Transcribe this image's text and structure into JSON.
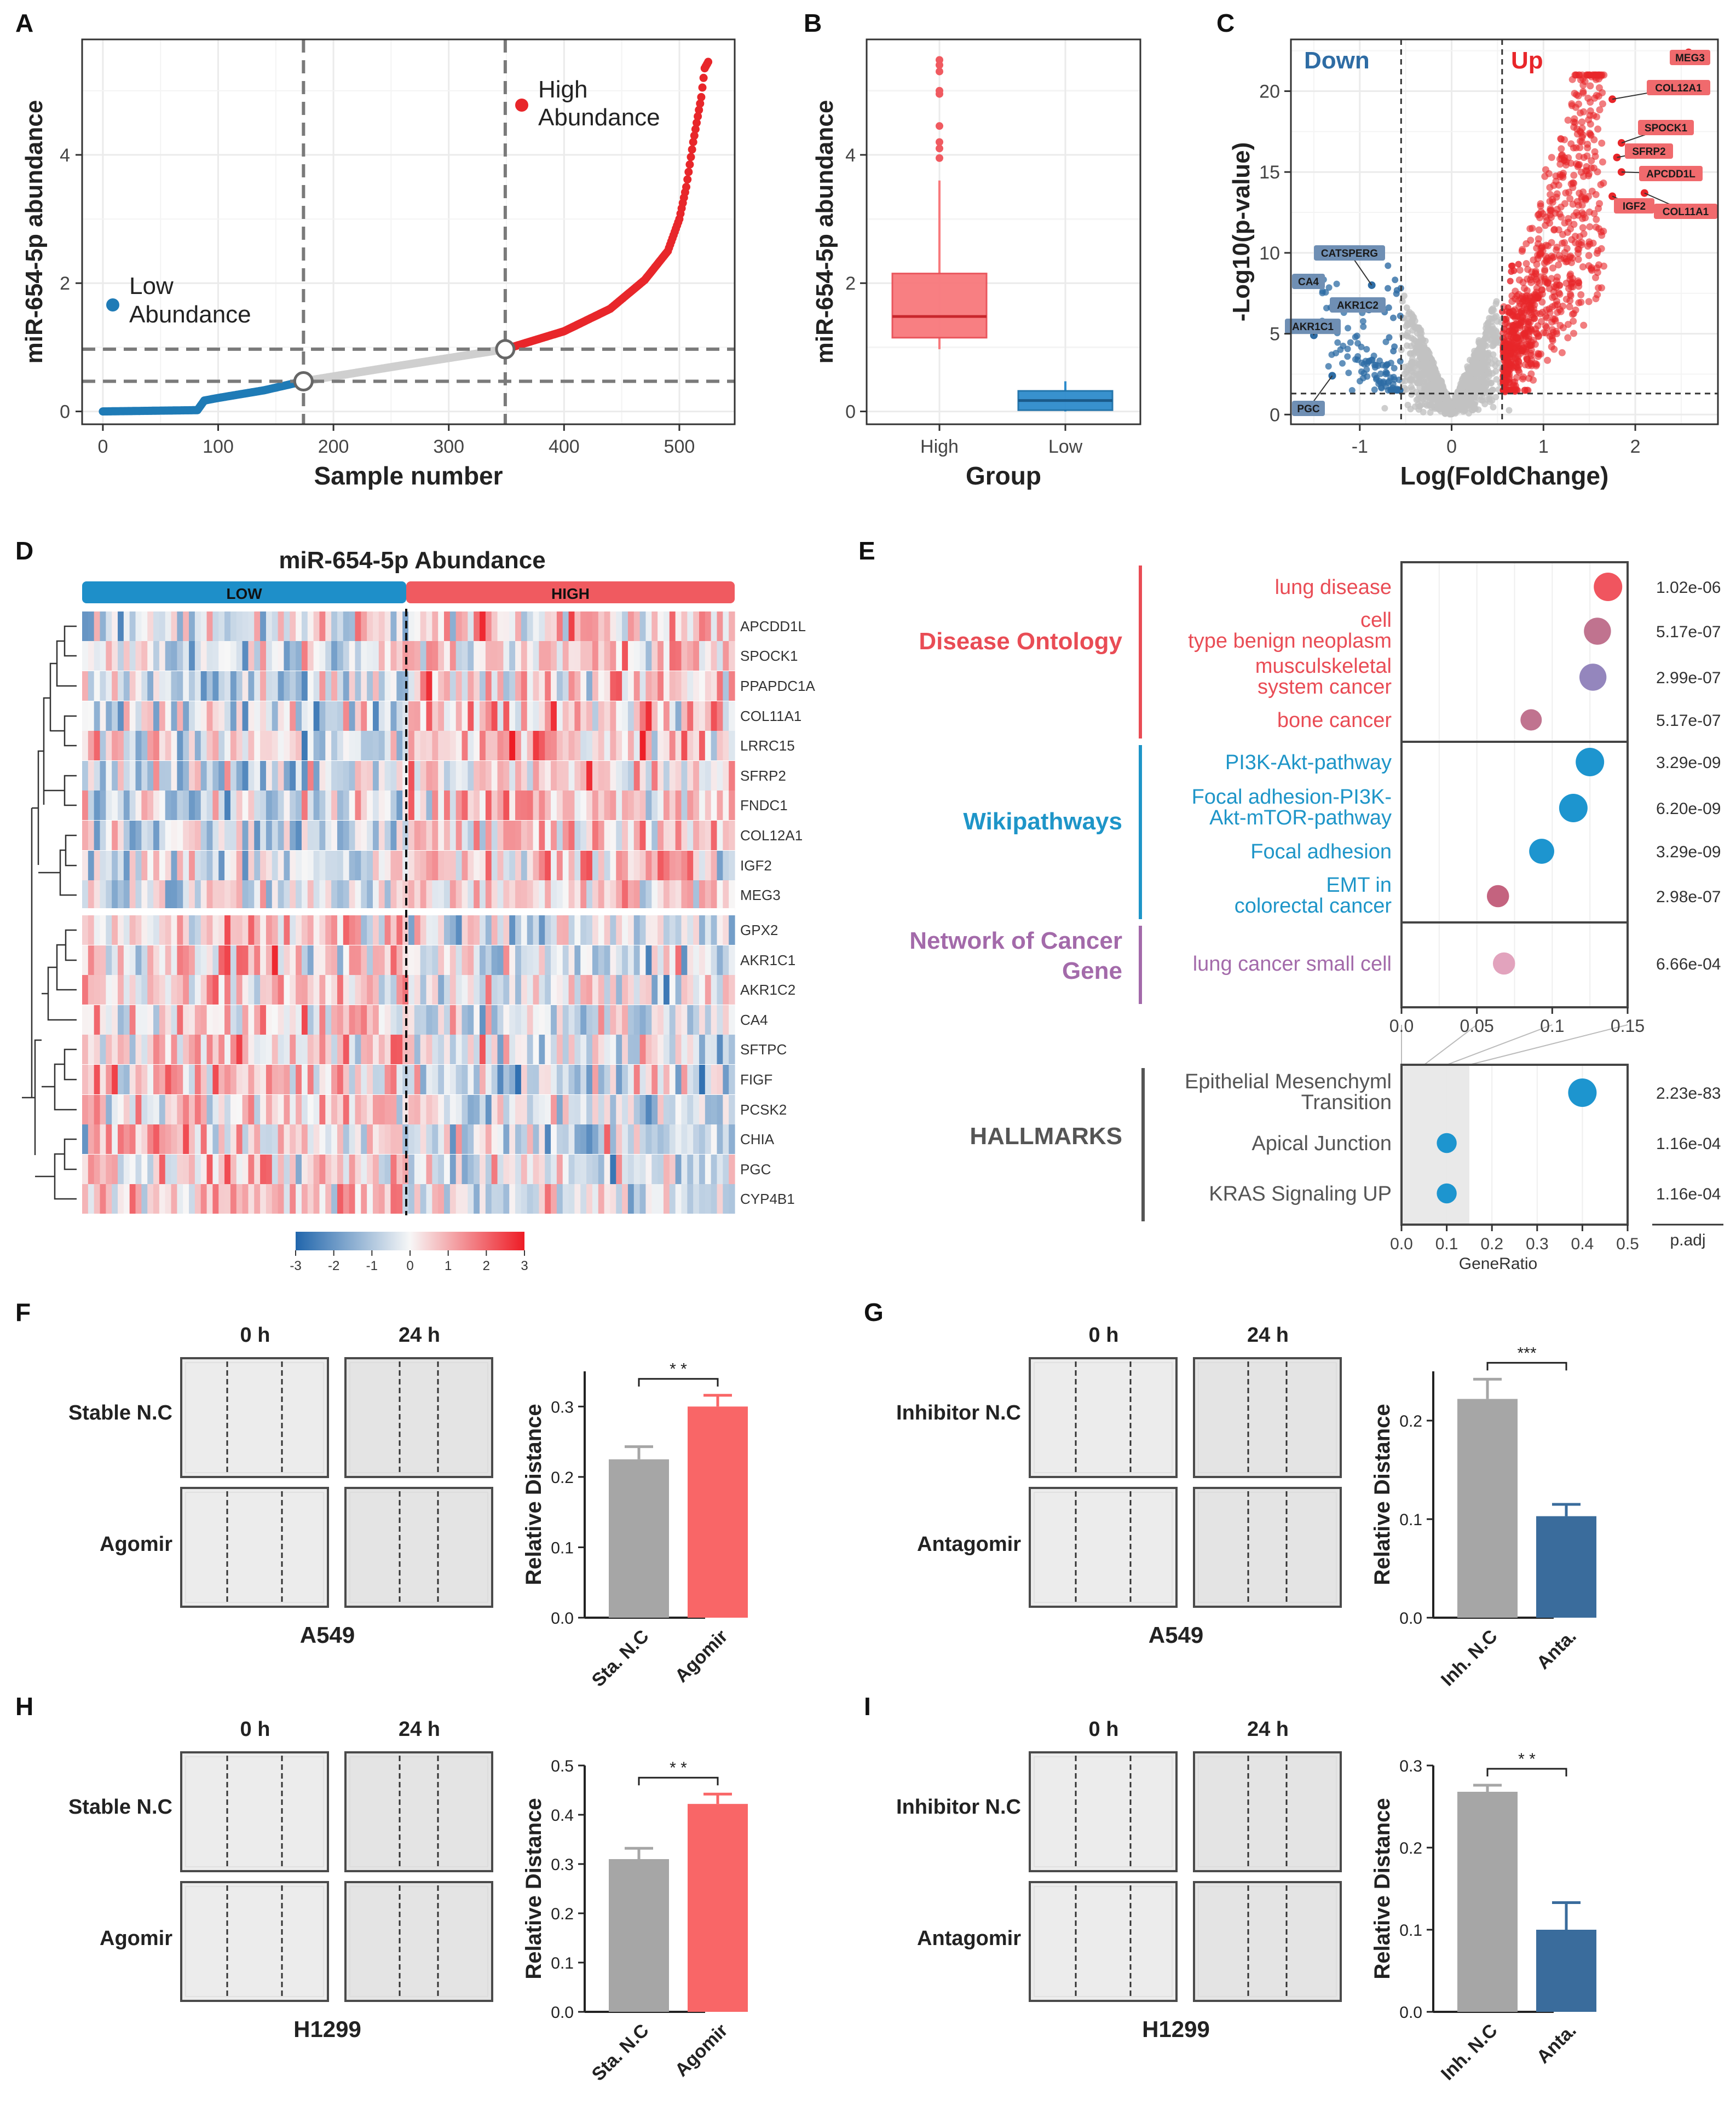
{
  "chart_data": [
    {
      "panel": "A",
      "type": "scatter",
      "xlabel": "Sample number",
      "ylabel": "miR-654-5p abundance",
      "xlim": [
        -18,
        548
      ],
      "ylim": [
        -0.2,
        5.8
      ],
      "xticks": [
        0,
        100,
        200,
        300,
        400,
        500
      ],
      "yticks": [
        0,
        2,
        4
      ],
      "thresholds": {
        "x_low": 174,
        "x_high": 349,
        "y_low": 0.47,
        "y_high": 0.97
      },
      "legend": [
        {
          "label_line1": "Low",
          "label_line2": "Abundance",
          "color": "#1f7bb6"
        },
        {
          "label_line1": "High",
          "label_line2": "Abundance",
          "color": "#e8262a"
        }
      ],
      "curve": [
        [
          0,
          0
        ],
        [
          82,
          0.02
        ],
        [
          88,
          0.17
        ],
        [
          100,
          0.21
        ],
        [
          140,
          0.33
        ],
        [
          174,
          0.47
        ],
        [
          260,
          0.72
        ],
        [
          349,
          0.97
        ],
        [
          400,
          1.25
        ],
        [
          440,
          1.6
        ],
        [
          470,
          2.05
        ],
        [
          490,
          2.5
        ],
        [
          500,
          3.0
        ],
        [
          506,
          3.5
        ],
        [
          512,
          4.2
        ],
        [
          516,
          4.6
        ],
        [
          519,
          4.9
        ],
        [
          522,
          5.35
        ],
        [
          525,
          5.45
        ]
      ],
      "sample_count": 525
    },
    {
      "panel": "B",
      "type": "box",
      "xlabel": "Group",
      "ylabel": "miR-654-5p abundance",
      "ylim": [
        -0.2,
        5.8
      ],
      "yticks": [
        0,
        2,
        4
      ],
      "categories": [
        "High",
        "Low"
      ],
      "boxes": [
        {
          "name": "High",
          "min": 0.97,
          "q1": 1.15,
          "median": 1.48,
          "q3": 2.15,
          "max": 3.6,
          "outliers": [
            3.95,
            4.1,
            4.2,
            4.45,
            4.95,
            5.0,
            5.3,
            5.4,
            5.48
          ],
          "color": "#f8797c"
        },
        {
          "name": "Low",
          "min": 0.0,
          "q1": 0.02,
          "median": 0.17,
          "q3": 0.32,
          "max": 0.47,
          "outliers": [],
          "color": "#2e8ccc"
        }
      ]
    },
    {
      "panel": "C",
      "type": "scatter",
      "subtype": "volcano",
      "xlabel": "Log(FoldChange)",
      "ylabel": "-Log10(p-value)",
      "xlim": [
        -1.75,
        2.9
      ],
      "ylim": [
        -0.6,
        23.2
      ],
      "xticks": [
        -1,
        0,
        1,
        2
      ],
      "yticks": [
        0,
        5,
        10,
        15,
        20
      ],
      "thresholds": {
        "fc_low": -0.55,
        "fc_high": 0.55,
        "p": 1.3
      },
      "region_labels": [
        {
          "text": "Down",
          "color": "#2e6ca4"
        },
        {
          "text": "Up",
          "color": "#e8262a"
        }
      ],
      "labeled_genes": [
        {
          "gene": "MEG3",
          "fc": 2.58,
          "p": 22.4,
          "group": "up"
        },
        {
          "gene": "COL12A1",
          "fc": 1.75,
          "p": 19.5,
          "group": "up"
        },
        {
          "gene": "SPOCK1",
          "fc": 1.85,
          "p": 16.8,
          "group": "up"
        },
        {
          "gene": "SFRP2",
          "fc": 1.8,
          "p": 15.9,
          "group": "up"
        },
        {
          "gene": "APCDD1L",
          "fc": 1.85,
          "p": 15.0,
          "group": "up"
        },
        {
          "gene": "IGF2",
          "fc": 1.75,
          "p": 13.5,
          "group": "up"
        },
        {
          "gene": "COL11A1",
          "fc": 2.1,
          "p": 13.7,
          "group": "up"
        },
        {
          "gene": "CATSPERG",
          "fc": -0.87,
          "p": 8.0,
          "group": "down"
        },
        {
          "gene": "CA4",
          "fc": -1.45,
          "p": 8.2,
          "group": "down"
        },
        {
          "gene": "AKR1C2",
          "fc": -0.9,
          "p": 6.5,
          "group": "down"
        },
        {
          "gene": "AKR1C1",
          "fc": -1.5,
          "p": 4.9,
          "group": "down"
        },
        {
          "gene": "PGC",
          "fc": -1.3,
          "p": 2.4,
          "group": "down"
        }
      ]
    },
    {
      "panel": "D",
      "type": "heatmap",
      "title": "miR-654-5p Abundance",
      "groups": [
        "LOW",
        "HIGH"
      ],
      "genes": [
        "APCDD1L",
        "SPOCK1",
        "PPAPDC1A",
        "COL11A1",
        "LRRC15",
        "SFRP2",
        "FNDC1",
        "COL12A1",
        "IGF2",
        "MEG3",
        "GPX2",
        "AKR1C1",
        "AKR1C2",
        "CA4",
        "SFTPC",
        "FIGF",
        "PCSK2",
        "CHIA",
        "PGC",
        "CYP4B1"
      ],
      "up_in_high": [
        "APCDD1L",
        "SPOCK1",
        "PPAPDC1A",
        "COL11A1",
        "LRRC15",
        "SFRP2",
        "FNDC1",
        "COL12A1",
        "IGF2",
        "MEG3"
      ],
      "colorbar_ticks": [
        "-3",
        "-2",
        "-1",
        "0",
        "1",
        "2",
        "3"
      ],
      "colorbar_range": [
        -3,
        3
      ]
    },
    {
      "panel": "E",
      "type": "scatter",
      "subtype": "dotplot",
      "xlabel": "GeneRatio",
      "padj_header": "p.adj",
      "axis_top": {
        "ticks": [
          "0.0",
          "0.05",
          "0.1",
          "0.15"
        ],
        "xlim": [
          0,
          0.15
        ]
      },
      "axis_bottom": {
        "ticks": [
          "0.0",
          "0.1",
          "0.2",
          "0.3",
          "0.4",
          "0.5"
        ],
        "xlim": [
          0,
          0.5
        ]
      },
      "sections": [
        {
          "name": "Disease Ontology",
          "color": "#e94c55",
          "terms": [
            {
              "line1": "lung disease",
              "line2": "",
              "ratio": 0.137,
              "padj": "1.02e-06",
              "dot": "#f0555f",
              "size": 1.0
            },
            {
              "line1": "cell",
              "line2": "type benign neoplasm",
              "ratio": 0.13,
              "padj": "5.17e-07",
              "dot": "#c0738f",
              "size": 0.95
            },
            {
              "line1": "musculskeletal",
              "line2": "system cancer",
              "ratio": 0.127,
              "padj": "2.99e-07",
              "dot": "#9486bd",
              "size": 0.95
            },
            {
              "line1": "bone cancer",
              "line2": "",
              "ratio": 0.086,
              "padj": "5.17e-07",
              "dot": "#c0738f",
              "size": 0.75
            }
          ]
        },
        {
          "name": "Wikipathways",
          "color": "#1e95c8",
          "terms": [
            {
              "line1": "PI3K-Akt-pathway",
              "line2": "",
              "ratio": 0.125,
              "padj": "3.29e-09",
              "dot": "#1d95cf",
              "size": 1.0
            },
            {
              "line1": "Focal adhesion-PI3K-",
              "line2": "Akt-mTOR-pathway",
              "ratio": 0.114,
              "padj": "6.20e-09",
              "dot": "#1d95cf",
              "size": 1.0
            },
            {
              "line1": "Focal adhesion",
              "line2": "",
              "ratio": 0.093,
              "padj": "3.29e-09",
              "dot": "#1d95cf",
              "size": 0.88
            },
            {
              "line1": "EMT in",
              "line2": "colorectal cancer",
              "ratio": 0.064,
              "padj": "2.98e-07",
              "dot": "#c4637f",
              "size": 0.78
            }
          ]
        },
        {
          "name_line1": "Network of Cancer",
          "name_line2": "Gene",
          "color": "#a36aaa",
          "terms": [
            {
              "line1": "lung cancer small cell",
              "line2": "",
              "ratio": 0.068,
              "padj": "6.66e-04",
              "dot": "#e2a3bd",
              "size": 0.78
            }
          ]
        },
        {
          "name": "HALLMARKS",
          "color": "#555555",
          "terms": [
            {
              "line1": "Epithelial Mesenchyml",
              "line2": "Transition",
              "ratio": 0.4,
              "padj": "2.23e-83",
              "dot": "#1d95cf",
              "size": 1.0
            },
            {
              "line1": "Apical Junction",
              "line2": "",
              "ratio": 0.1,
              "padj": "1.16e-04",
              "dot": "#1d95cf",
              "size": 0.7
            },
            {
              "line1": "KRAS Signaling UP",
              "line2": "",
              "ratio": 0.1,
              "padj": "1.16e-04",
              "dot": "#1d95cf",
              "size": 0.7
            }
          ]
        }
      ]
    },
    {
      "panel": "F",
      "type": "bar",
      "cell_line": "A549",
      "time_labels": [
        "0 h",
        "24 h"
      ],
      "row_labels": [
        "Stable N.C",
        "Agomir"
      ],
      "ylabel": "Relative Distance",
      "categories": [
        "Sta. N.C",
        "Agomir"
      ],
      "values": [
        0.225,
        0.3
      ],
      "errors": [
        0.018,
        0.016
      ],
      "ylim": [
        0,
        0.35
      ],
      "yticks": [
        "0.0",
        "0.1",
        "0.2",
        "0.3"
      ],
      "significance": "* *",
      "colors": [
        "#a6a6a6",
        "#f96667"
      ]
    },
    {
      "panel": "G",
      "type": "bar",
      "cell_line": "A549",
      "time_labels": [
        "0 h",
        "24 h"
      ],
      "row_labels": [
        "Inhibitor N.C",
        "Antagomir"
      ],
      "ylabel": "Relative Distance",
      "categories": [
        "Inh. N.C",
        "Anta."
      ],
      "values": [
        0.222,
        0.103
      ],
      "errors": [
        0.02,
        0.012
      ],
      "ylim": [
        0,
        0.25
      ],
      "yticks": [
        "0.0",
        "0.1",
        "0.2"
      ],
      "significance": "***",
      "colors": [
        "#a6a6a6",
        "#3a6c9c"
      ]
    },
    {
      "panel": "H",
      "type": "bar",
      "cell_line": "H1299",
      "time_labels": [
        "0 h",
        "24 h"
      ],
      "row_labels": [
        "Stable N.C",
        "Agomir"
      ],
      "ylabel": "Relative Distance",
      "categories": [
        "Sta. N.C",
        "Agomir"
      ],
      "values": [
        0.31,
        0.422
      ],
      "errors": [
        0.022,
        0.02
      ],
      "ylim": [
        0,
        0.5
      ],
      "yticks": [
        "0.0",
        "0.1",
        "0.2",
        "0.3",
        "0.4",
        "0.5"
      ],
      "significance": "* *",
      "colors": [
        "#a6a6a6",
        "#f96667"
      ]
    },
    {
      "panel": "I",
      "type": "bar",
      "cell_line": "H1299",
      "time_labels": [
        "0 h",
        "24 h"
      ],
      "row_labels": [
        "Inhibitor N.C",
        "Antagomir"
      ],
      "ylabel": "Relative Distance",
      "categories": [
        "Inh. N.C",
        "Anta."
      ],
      "values": [
        0.268,
        0.1
      ],
      "errors": [
        0.008,
        0.033
      ],
      "ylim": [
        0,
        0.3
      ],
      "yticks": [
        "0.0",
        "0.1",
        "0.2",
        "0.3"
      ],
      "significance": "* *",
      "colors": [
        "#a6a6a6",
        "#3a6c9c"
      ]
    }
  ]
}
